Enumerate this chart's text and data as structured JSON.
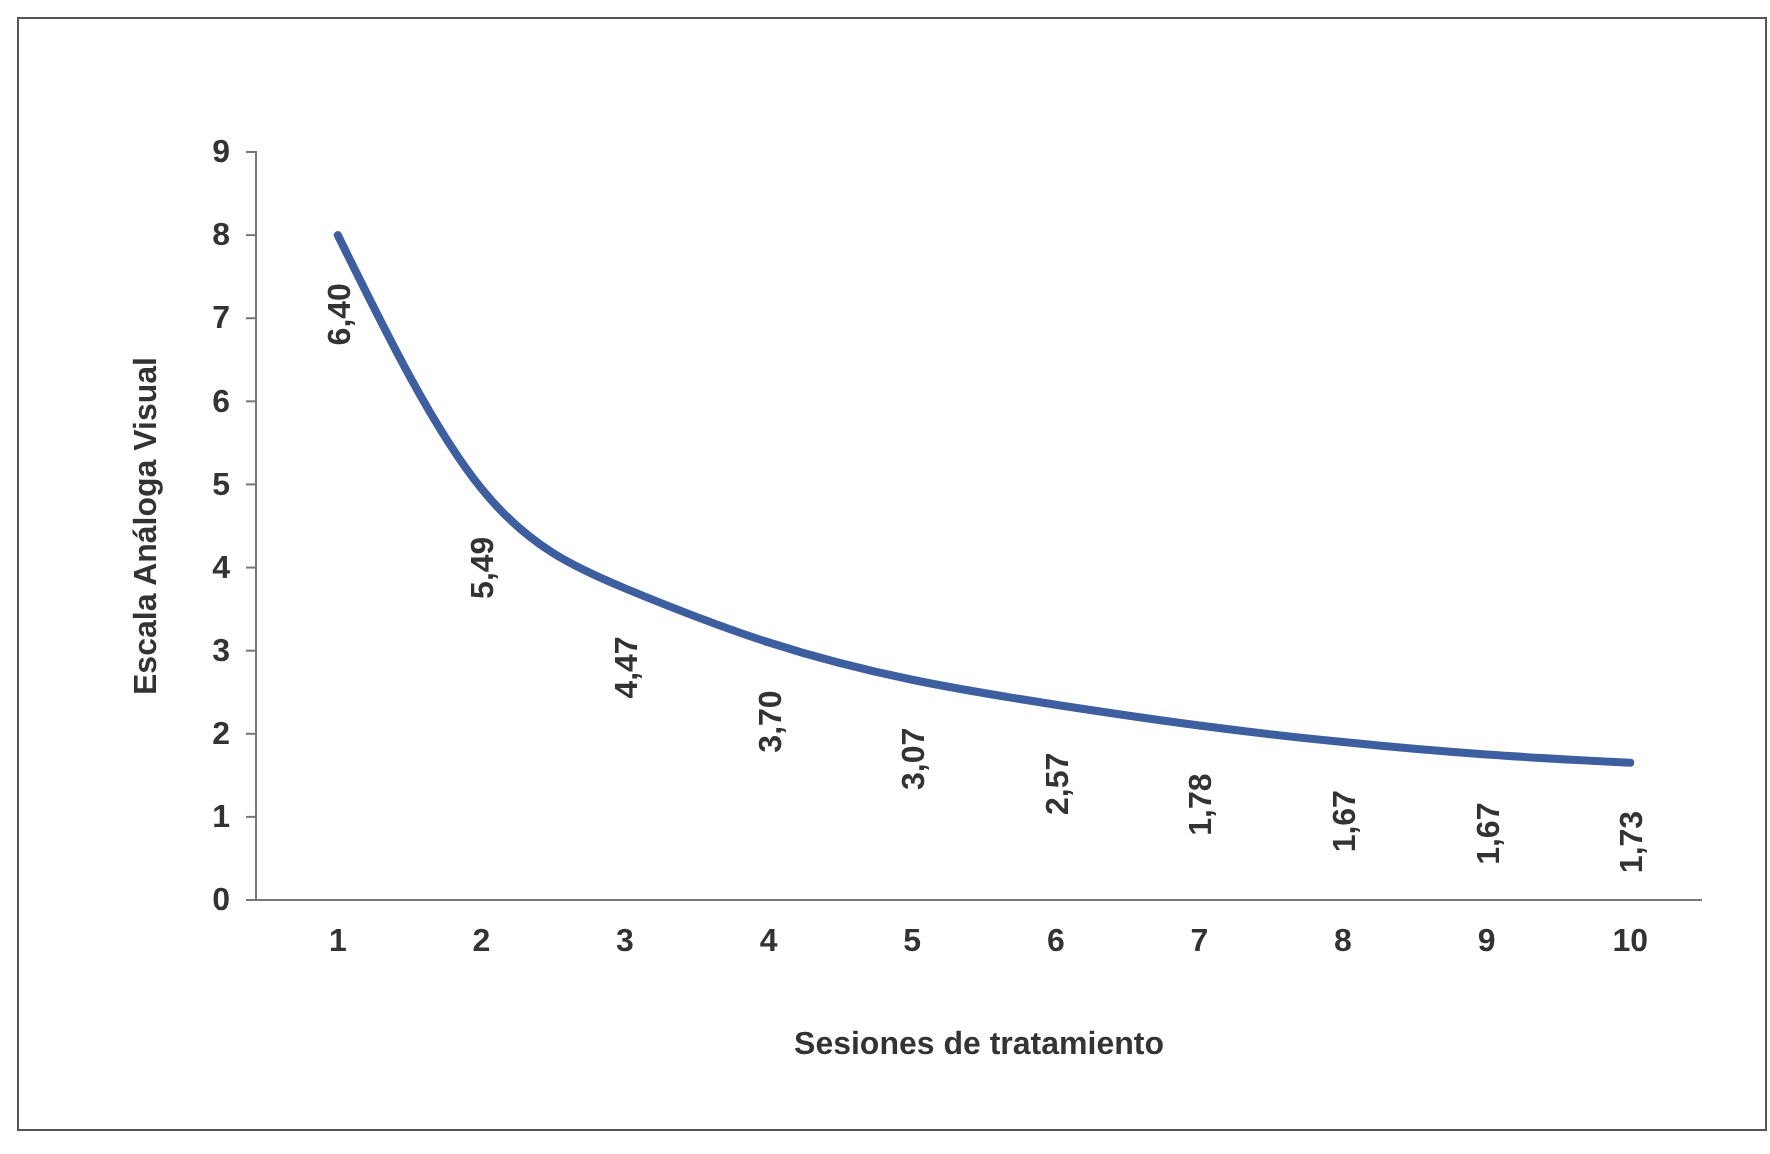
{
  "chart_data": {
    "type": "line",
    "xlabel": "Sesiones de tratamiento",
    "ylabel": "Escala  Análoga  Visual",
    "categories": [
      "1",
      "2",
      "3",
      "4",
      "5",
      "6",
      "7",
      "8",
      "9",
      "10"
    ],
    "series": [
      {
        "color": "#3d5fa0",
        "values": [
          8.0,
          4.95,
          3.75,
          3.1,
          2.65,
          2.35,
          2.1,
          1.9,
          1.75,
          1.65
        ]
      }
    ],
    "ylim": [
      0,
      9
    ],
    "yticks": [
      0,
      1,
      2,
      3,
      4,
      5,
      6,
      7,
      8,
      9
    ],
    "grid": false,
    "marker": "none",
    "line_style": "solid",
    "annotations": [
      "6,40",
      "5,49",
      "4,47",
      "3,70",
      "3,07",
      "2,57",
      "1,78",
      "1,67",
      "1,67",
      "1,73"
    ]
  }
}
